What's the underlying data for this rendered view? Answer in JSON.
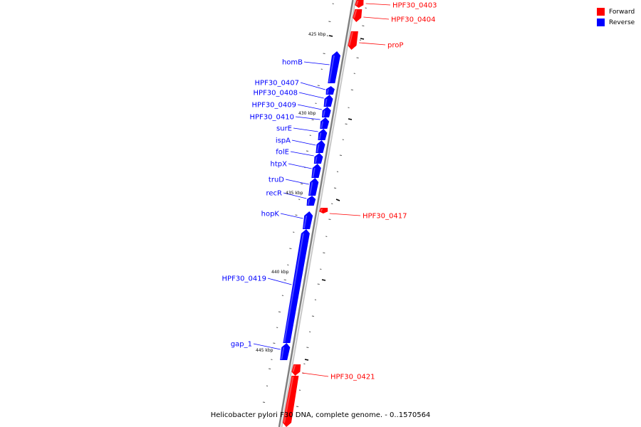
{
  "colors": {
    "forward": "#ff0000",
    "reverse": "#0000ff",
    "backbone": "#808080"
  },
  "legend": [
    {
      "label": "Forward",
      "color": "#ff0000"
    },
    {
      "label": "Reverse",
      "color": "#0000ff"
    }
  ],
  "caption": "Helicobacter pylori F30 DNA, complete genome. - 0..1570564",
  "ruler_labels": [
    {
      "text": "425 kbp",
      "bp": 425000
    },
    {
      "text": "430 kbp",
      "bp": 430000
    },
    {
      "text": "435 kbp",
      "bp": 435000
    },
    {
      "text": "440 kbp",
      "bp": 440000
    },
    {
      "text": "445 kbp",
      "bp": 445000
    }
  ],
  "genes": [
    {
      "name": "HPF30_0403",
      "strand": "forward"
    },
    {
      "name": "HPF30_0404",
      "strand": "forward"
    },
    {
      "name": "proP",
      "strand": "forward"
    },
    {
      "name": "homB",
      "strand": "reverse"
    },
    {
      "name": "HPF30_0407",
      "strand": "reverse"
    },
    {
      "name": "HPF30_0408",
      "strand": "reverse"
    },
    {
      "name": "HPF30_0409",
      "strand": "reverse"
    },
    {
      "name": "HPF30_0410",
      "strand": "reverse"
    },
    {
      "name": "surE",
      "strand": "reverse"
    },
    {
      "name": "ispA",
      "strand": "reverse"
    },
    {
      "name": "folE",
      "strand": "reverse"
    },
    {
      "name": "htpX",
      "strand": "reverse"
    },
    {
      "name": "truD",
      "strand": "reverse"
    },
    {
      "name": "recR",
      "strand": "reverse"
    },
    {
      "name": "HPF30_0417",
      "strand": "forward"
    },
    {
      "name": "hopK",
      "strand": "reverse"
    },
    {
      "name": "HPF30_0419",
      "strand": "reverse"
    },
    {
      "name": "gap_1",
      "strand": "reverse"
    },
    {
      "name": "HPF30_0421",
      "strand": "forward"
    },
    {
      "name": "",
      "strand": "forward"
    }
  ]
}
